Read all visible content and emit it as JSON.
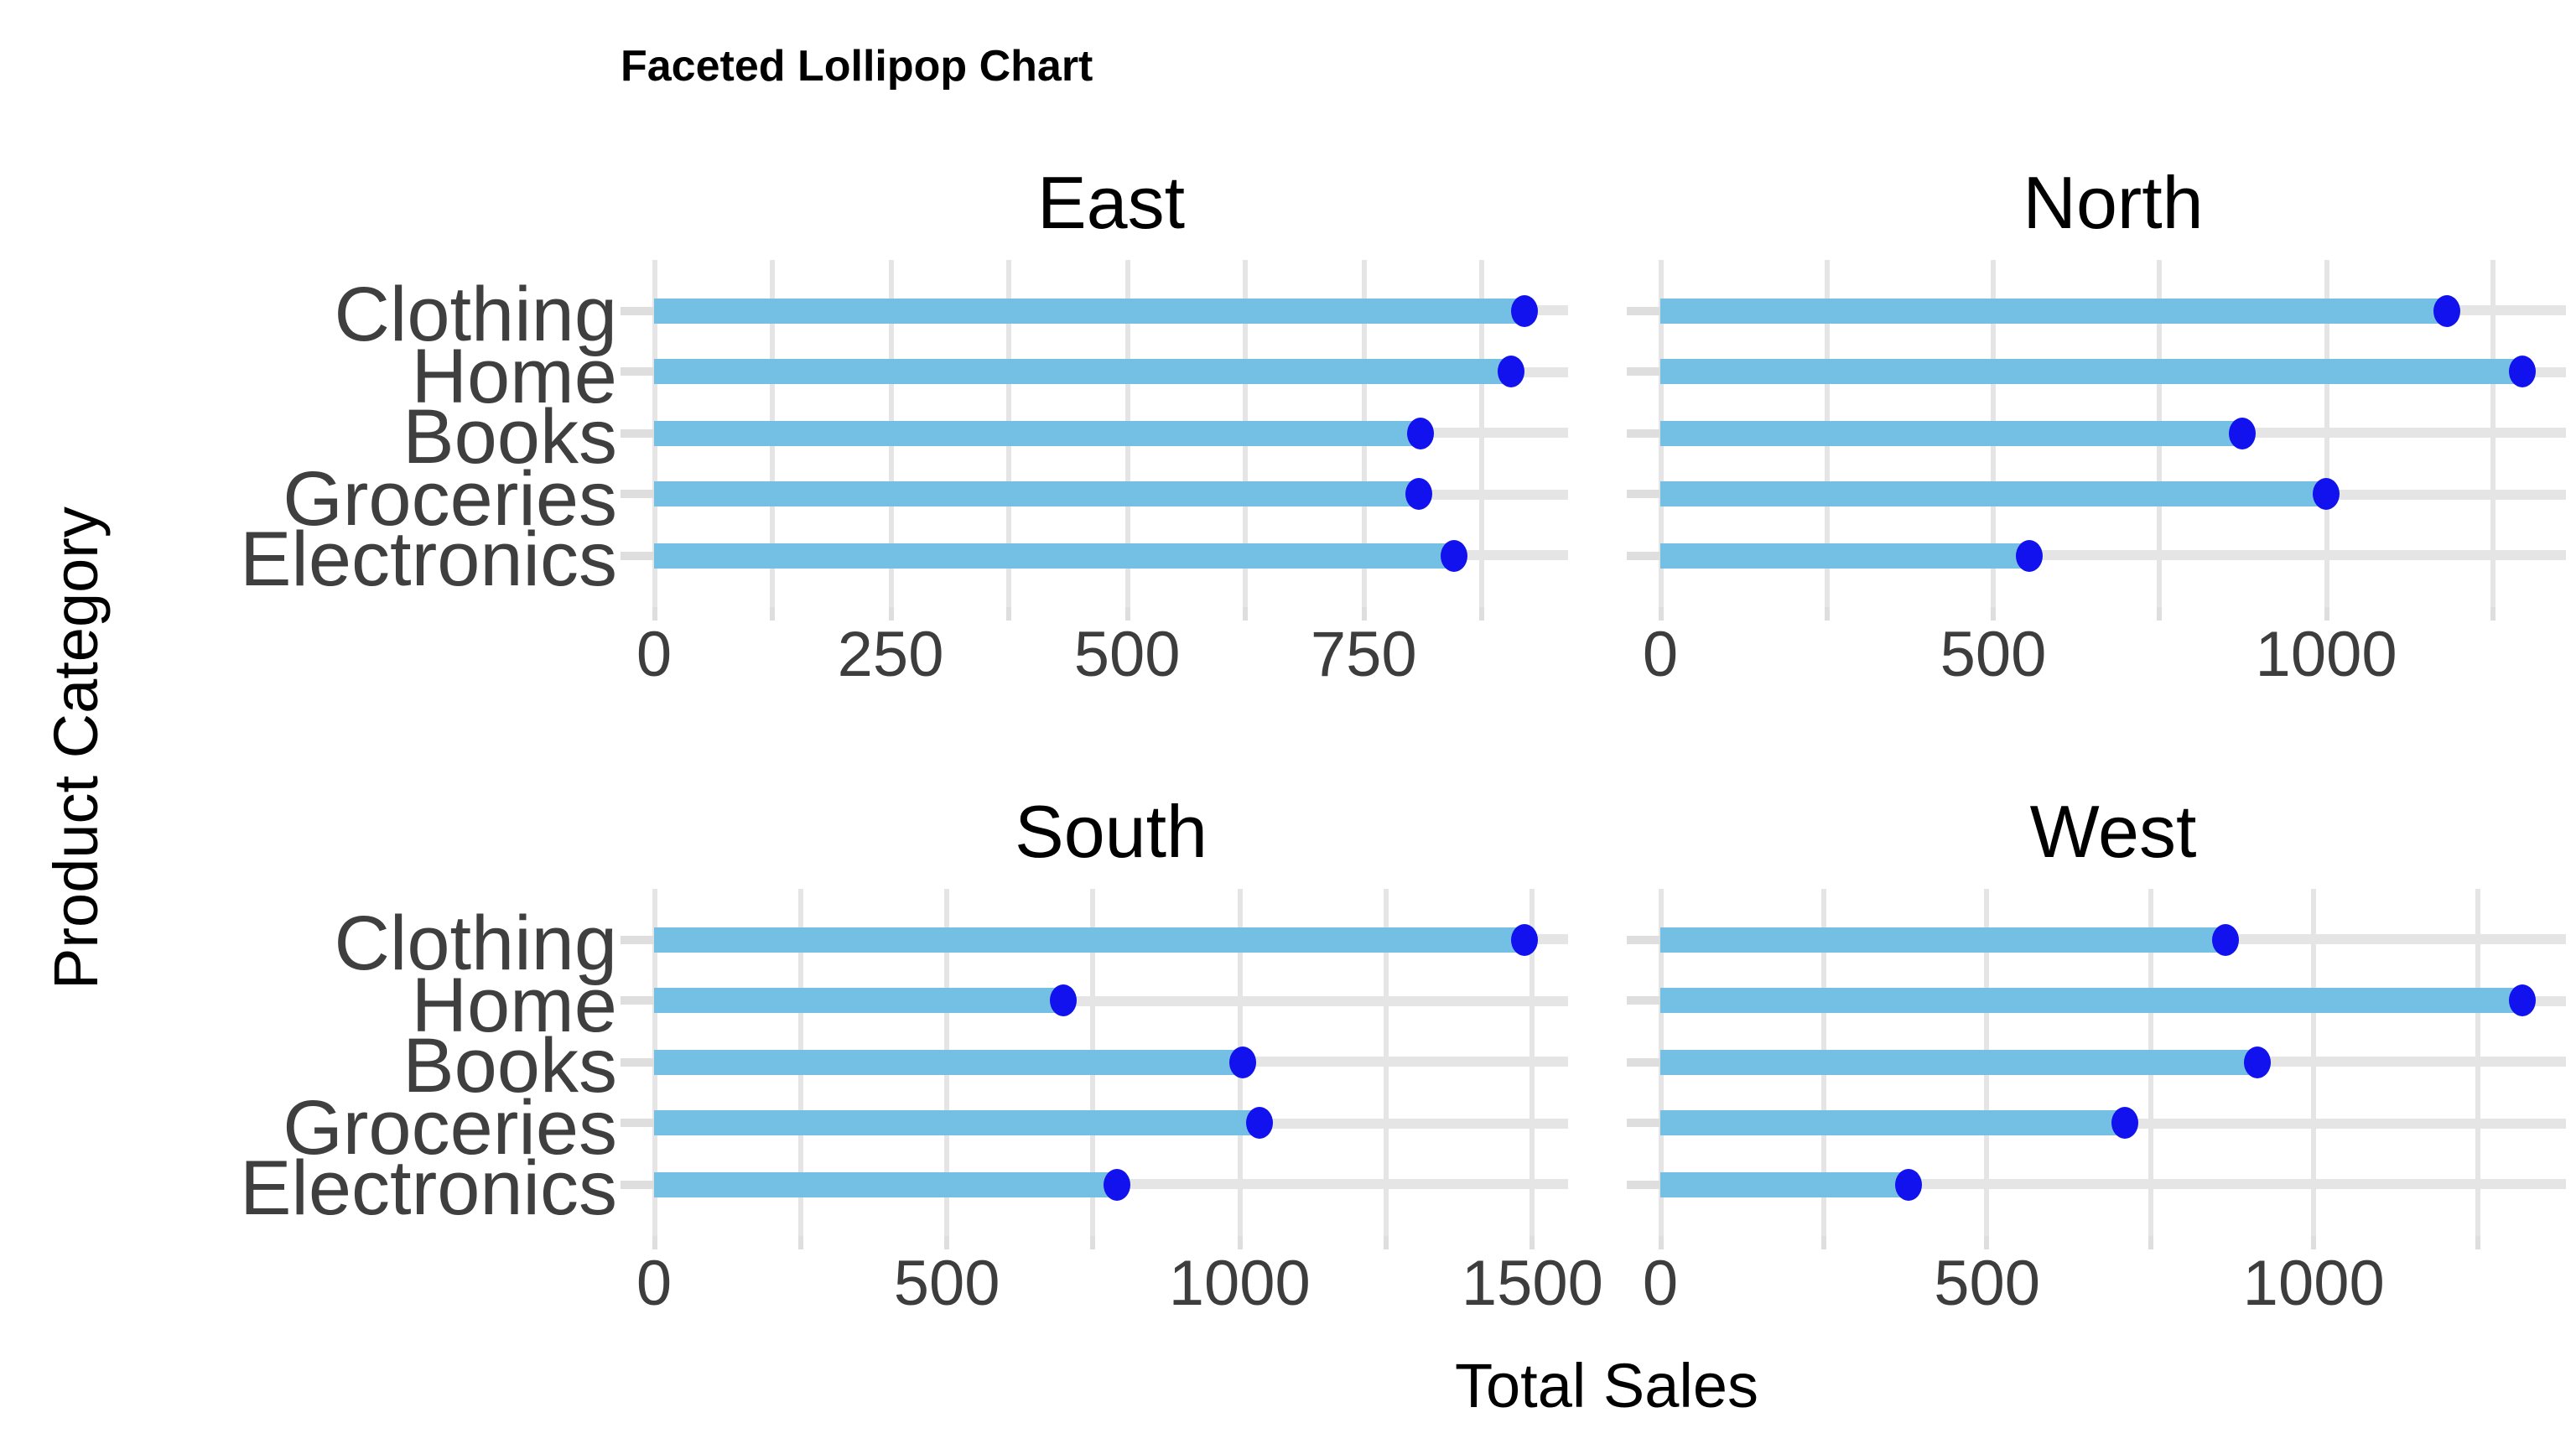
{
  "title": "Faceted Lollipop Chart",
  "chart_data": {
    "type": "bar",
    "variant": "lollipop",
    "orientation": "horizontal",
    "title": "Faceted Lollipop Chart",
    "xlabel": "Total Sales",
    "ylabel": "Product Category",
    "grid": true,
    "legend": false,
    "categories_top_to_bottom": [
      "Clothing",
      "Home",
      "Books",
      "Groceries",
      "Electronics"
    ],
    "facets": [
      {
        "name": "East",
        "xlim": [
          0,
          966
        ],
        "x_ticks": [
          0,
          250,
          500,
          750
        ],
        "gridline_step": 125,
        "values": {
          "Clothing": 920,
          "Home": 905,
          "Books": 810,
          "Groceries": 808,
          "Electronics": 845
        }
      },
      {
        "name": "North",
        "xlim": [
          0,
          1360
        ],
        "x_ticks": [
          0,
          500,
          1000
        ],
        "gridline_step": 250,
        "values": {
          "Clothing": 1180,
          "Home": 1295,
          "Books": 875,
          "Groceries": 1000,
          "Electronics": 555
        }
      },
      {
        "name": "South",
        "xlim": [
          0,
          1561
        ],
        "x_ticks": [
          0,
          500,
          1000,
          1500
        ],
        "gridline_step": 250,
        "values": {
          "Clothing": 1487,
          "Home": 700,
          "Books": 1005,
          "Groceries": 1035,
          "Electronics": 790
        }
      },
      {
        "name": "West",
        "xlim": [
          0,
          1386
        ],
        "x_ticks": [
          0,
          500,
          1000
        ],
        "gridline_step": 250,
        "values": {
          "Clothing": 865,
          "Home": 1320,
          "Books": 915,
          "Groceries": 710,
          "Electronics": 380
        }
      }
    ],
    "colors": {
      "bar": "#74c0e5",
      "dot": "#1212ee",
      "gridline": "#e5e5e5",
      "tick_mark": "#dedede",
      "axis_text": "#3d3d3d",
      "category_text": "#3f3f3f",
      "facet_title_text": "#000000",
      "title_text": "#000000"
    }
  }
}
